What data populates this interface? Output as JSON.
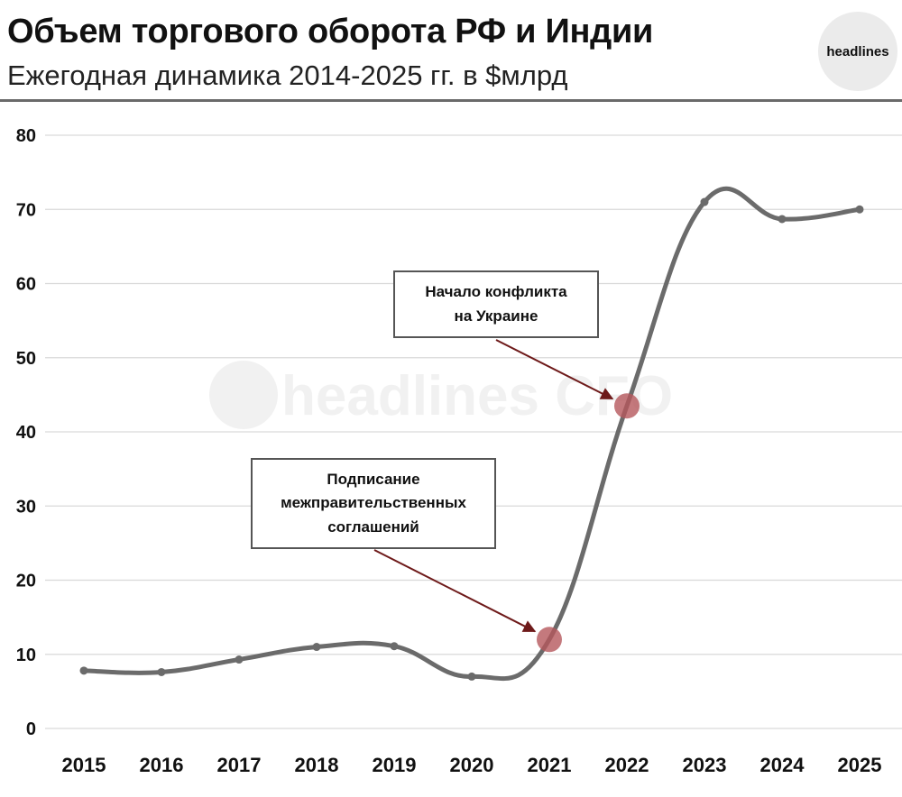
{
  "header": {
    "title": "Объем торгового оборота РФ и Индии",
    "subtitle": "Ежегодная динамика 2014-2025 гг. в $млрд",
    "logo_text": "headlines"
  },
  "watermark": "headlines CFO",
  "colors": {
    "line": "#6b6b6b",
    "grid": "#d9d9d9",
    "marker_highlight": "#b5585c",
    "arrow": "#6e1a1a"
  },
  "chart_data": {
    "type": "line",
    "title": "Объем торгового оборота РФ и Индии",
    "subtitle": "Ежегодная динамика 2014-2025 гг. в $млрд",
    "xlabel": "",
    "ylabel": "",
    "categories": [
      "2015",
      "2016",
      "2017",
      "2018",
      "2019",
      "2020",
      "2021",
      "2022",
      "2023",
      "2024",
      "2025"
    ],
    "series": [
      {
        "values": [
          7.8,
          7.6,
          9.3,
          11.0,
          11.1,
          7.0,
          12.0,
          43.5,
          71.0,
          68.7,
          70.0
        ]
      }
    ],
    "ylim": [
      0,
      80
    ],
    "yticks": [
      0,
      10,
      20,
      30,
      40,
      50,
      60,
      70,
      80
    ],
    "grid": true,
    "legend": "none",
    "annotations": [
      {
        "text": "Подписание\nмежправительственных\nсоглашений",
        "category": "2021"
      },
      {
        "text": "Начало конфликта\nна Украине",
        "category": "2022"
      }
    ]
  }
}
